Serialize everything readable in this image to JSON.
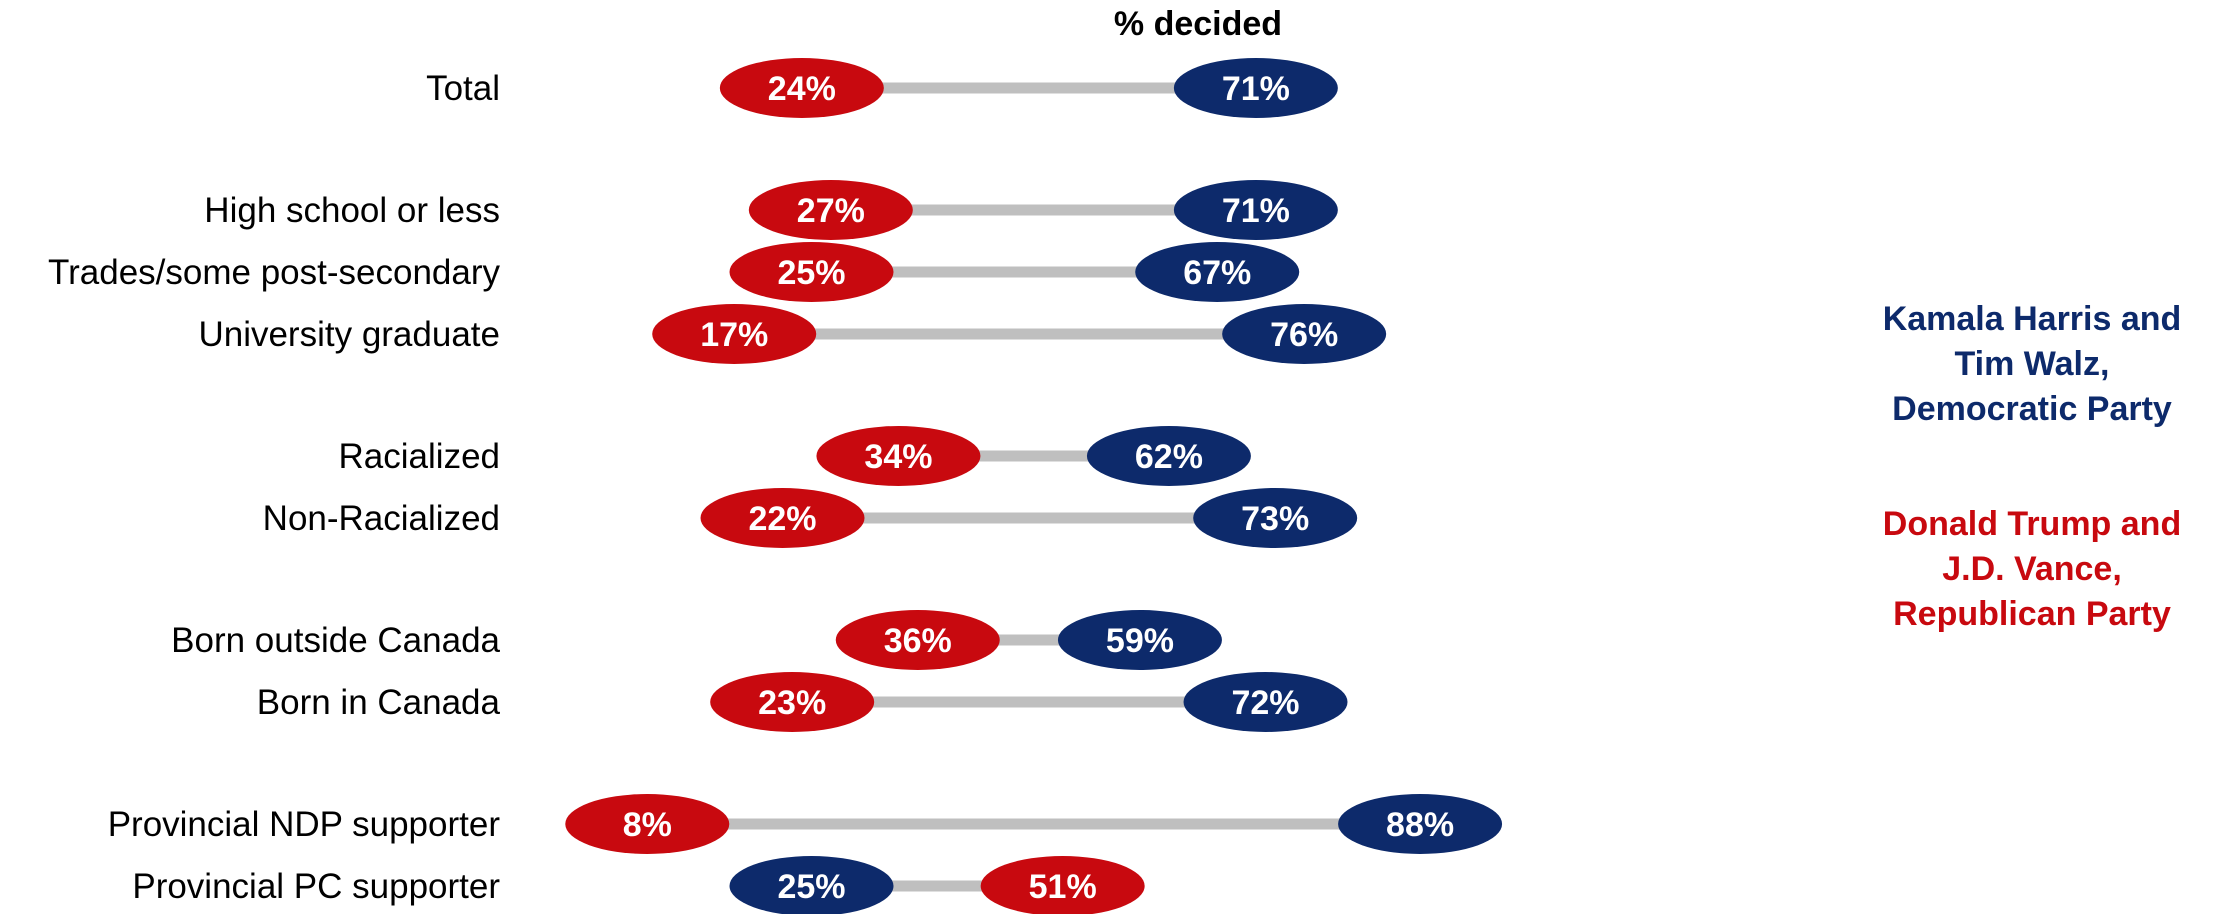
{
  "chart_data": {
    "type": "dumbbell",
    "title": "% decided",
    "unit": "%",
    "xlim": [
      0,
      100
    ],
    "categories": [
      "Total",
      "High school or less",
      "Trades/some post-secondary",
      "University graduate",
      "Racialized",
      "Non-Racialized",
      "Born outside Canada",
      "Born in Canada",
      "Provincial NDP supporter",
      "Provincial PC supporter"
    ],
    "groups": [
      [
        0
      ],
      [
        1,
        2,
        3
      ],
      [
        4,
        5
      ],
      [
        6,
        7
      ],
      [
        8,
        9
      ]
    ],
    "series": [
      {
        "name": "Kamala Harris and Tim Walz, Democratic Party",
        "color": "#0d2a6b",
        "values": [
          71,
          71,
          67,
          76,
          62,
          73,
          59,
          72,
          88,
          25
        ]
      },
      {
        "name": "Donald Trump and J.D. Vance, Republican Party",
        "color": "#c8090f",
        "values": [
          24,
          27,
          25,
          17,
          34,
          22,
          36,
          23,
          8,
          51
        ]
      }
    ],
    "connector_color": "#bfbfbf",
    "legend": {
      "placement": "right",
      "entries": [
        {
          "lines": [
            "Kamala Harris and",
            "Tim Walz,",
            "Democratic Party"
          ],
          "color": "#0d2a6b"
        },
        {
          "lines": [
            "Donald Trump and",
            "J.D. Vance,",
            "Republican Party"
          ],
          "color": "#c8090f"
        }
      ]
    }
  }
}
